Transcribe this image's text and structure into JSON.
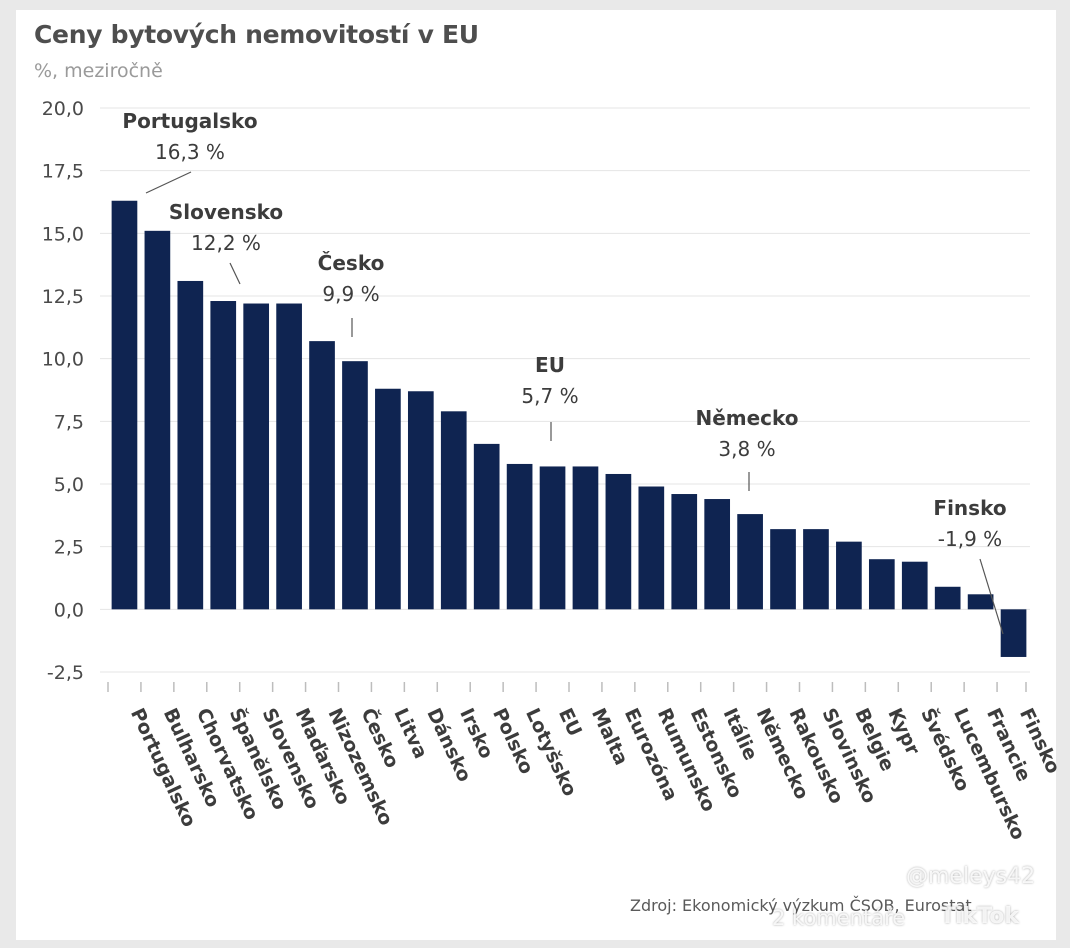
{
  "title": "Ceny bytových nemovitostí v EU",
  "subtitle": "%, meziročně",
  "source": "Zdroj: Ekonomický výzkum ČSOB, Eurostat",
  "watermark": {
    "handle": "@meleys42",
    "comments": "2 komentáře",
    "brand": "TikTok"
  },
  "colors": {
    "bar": "#0f2451",
    "grid": "#e4e4e4",
    "text": "#3c3c3c"
  },
  "chart_data": {
    "type": "bar",
    "ylim": [
      -2.5,
      20
    ],
    "yticks": [
      "20,0",
      "17,5",
      "15,0",
      "12,5",
      "10,0",
      "7,5",
      "5,0",
      "2,5",
      "0,0",
      "-2,5"
    ],
    "grid": true,
    "categories": [
      "Portugalsko",
      "Bulharsko",
      "Chorvatsko",
      "Španělsko",
      "Slovensko",
      "Maďarsko",
      "Nizozemsko",
      "Česko",
      "Litva",
      "Dánsko",
      "Irsko",
      "Polsko",
      "Lotyšsko",
      "EU",
      "Malta",
      "Eurozóna",
      "Rumunsko",
      "Estonsko",
      "Itálie",
      "Německo",
      "Rakousko",
      "Slovinsko",
      "Belgie",
      "Kypr",
      "Švédsko",
      "Lucembursko",
      "Francie",
      "Finsko"
    ],
    "values": [
      16.3,
      15.1,
      13.1,
      12.3,
      12.2,
      12.2,
      10.7,
      9.9,
      8.8,
      8.7,
      7.9,
      6.6,
      5.8,
      5.7,
      5.7,
      5.4,
      4.9,
      4.6,
      4.4,
      3.8,
      3.2,
      3.2,
      2.7,
      2.0,
      1.9,
      0.9,
      0.6,
      -1.9
    ],
    "annotations": [
      {
        "name": "Portugalsko",
        "value": "16,3 %"
      },
      {
        "name": "Slovensko",
        "value": "12,2 %"
      },
      {
        "name": "Česko",
        "value": "9,9 %"
      },
      {
        "name": "EU",
        "value": "5,7 %"
      },
      {
        "name": "Německo",
        "value": "3,8 %"
      },
      {
        "name": "Finsko",
        "value": "-1,9 %"
      }
    ]
  }
}
